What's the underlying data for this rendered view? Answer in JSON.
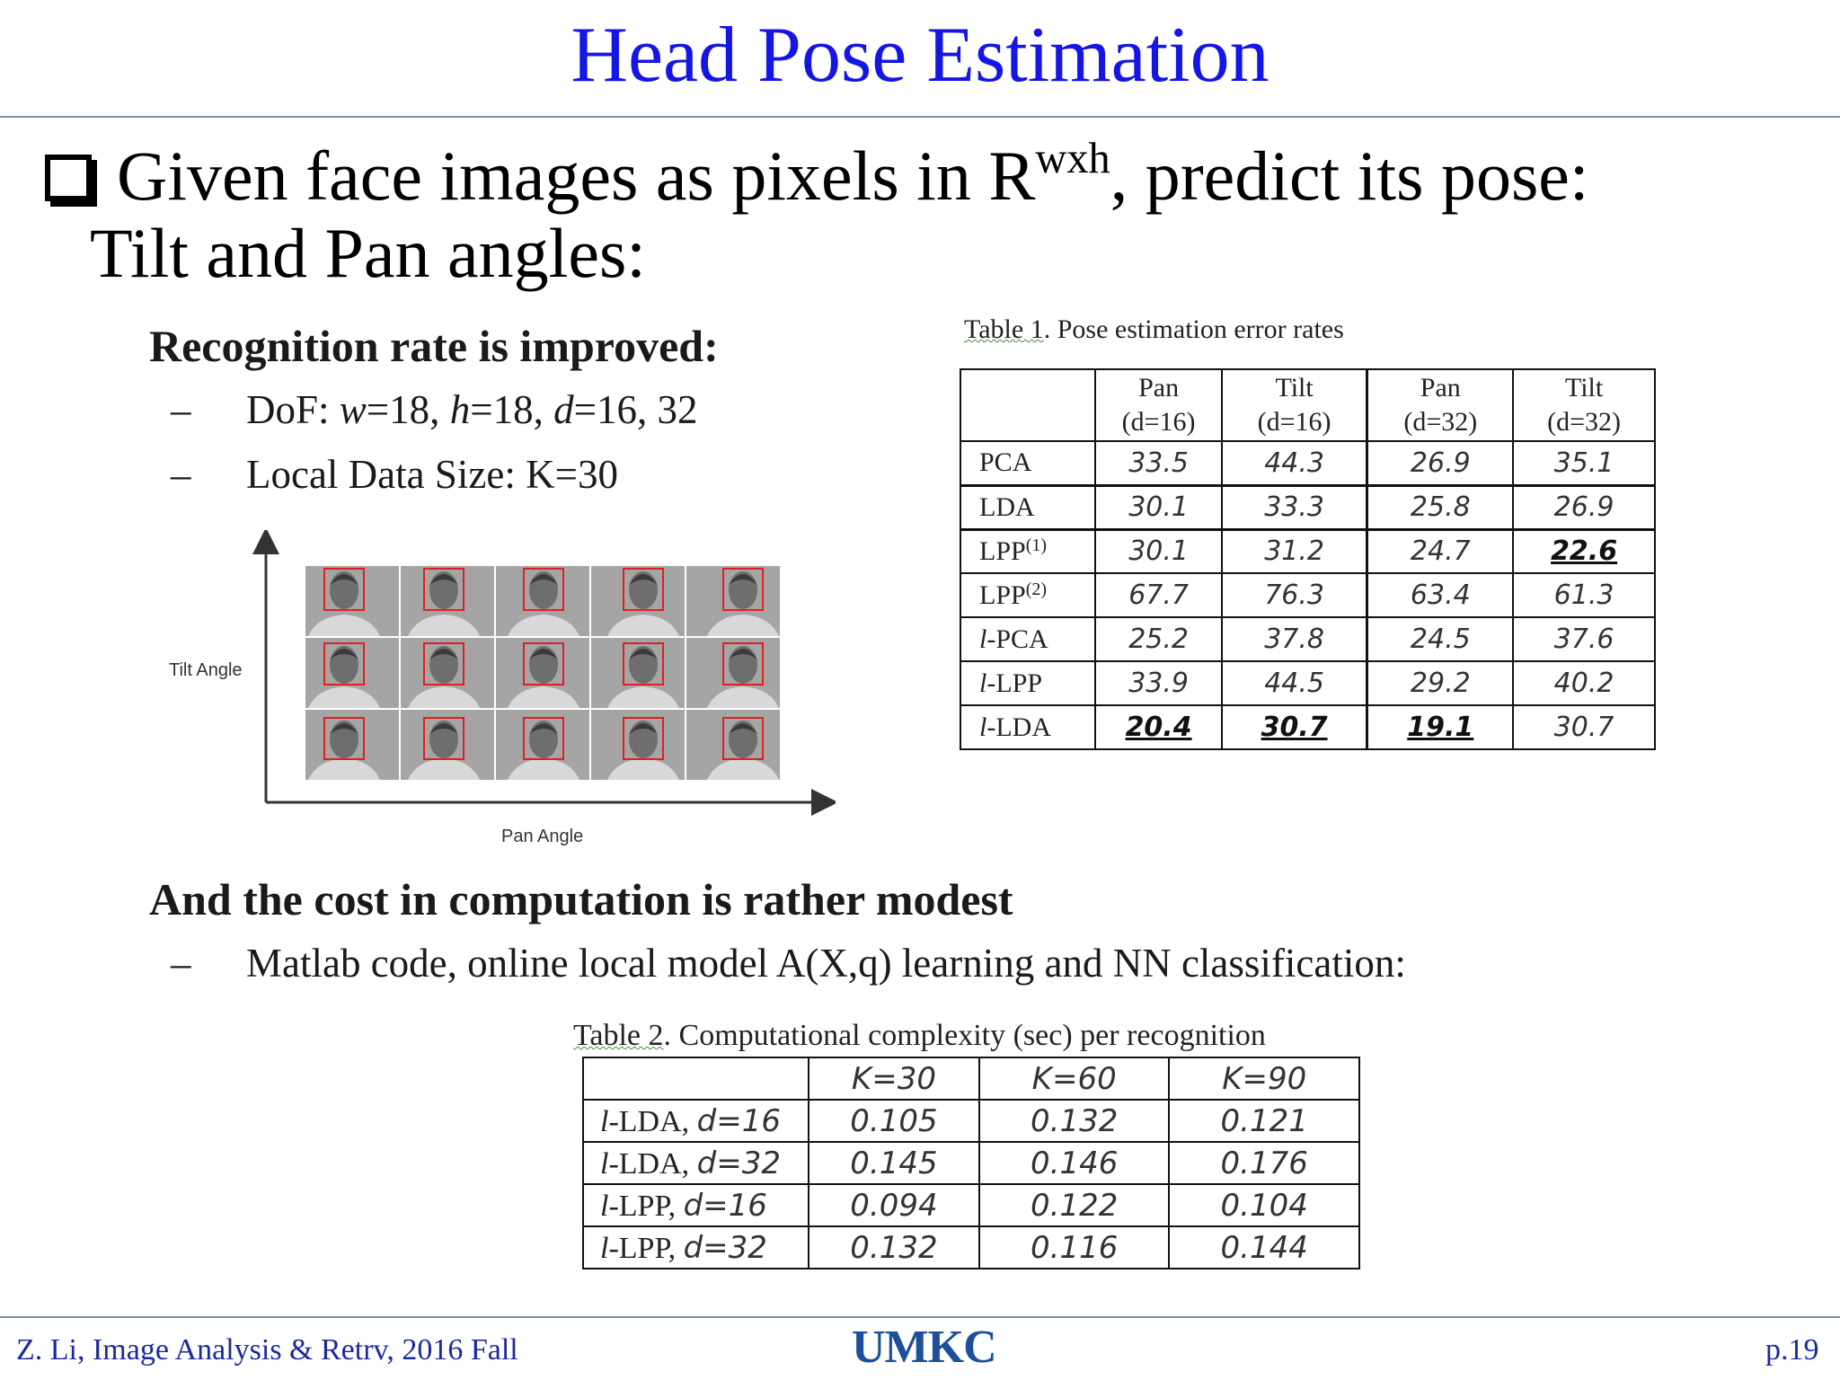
{
  "title": "Head Pose Estimation",
  "bullet": {
    "text_before": "Given face images as pixels in R",
    "superscript": "wxh",
    "text_after": ", predict its pose:",
    "line2": "Tilt and Pan angles:"
  },
  "section1": {
    "heading": "Recognition rate is improved:",
    "items": [
      {
        "prefix": "DoF: ",
        "w_var": "w",
        "w_val": "=18, ",
        "h_var": "h",
        "h_val": "=18, ",
        "d_var": "d",
        "d_val": "=16, 32"
      },
      {
        "text": "Local Data Size: K=30"
      }
    ]
  },
  "figure": {
    "y_axis_label": "Tilt Angle",
    "x_axis_label": "Pan Angle"
  },
  "table1": {
    "caption_label": "Table 1",
    "caption_text": ". Pose estimation error rates",
    "headers": [
      {
        "line1": "Pan",
        "line2": "(d=16)"
      },
      {
        "line1": "Tilt",
        "line2": "(d=16)"
      },
      {
        "line1": "Pan",
        "line2": "(d=32)"
      },
      {
        "line1": "Tilt",
        "line2": "(d=32)"
      }
    ],
    "rows": [
      {
        "method": "PCA",
        "sup": "",
        "values": [
          "33.5",
          "44.3",
          "26.9",
          "35.1"
        ]
      },
      {
        "method": "LDA",
        "sup": "",
        "values": [
          "30.1",
          "33.3",
          "25.8",
          "26.9"
        ]
      },
      {
        "method": "LPP",
        "sup": "(1)",
        "values": [
          "30.1",
          "31.2",
          "24.7",
          "22.6"
        ]
      },
      {
        "method": "LPP",
        "sup": "(2)",
        "values": [
          "67.7",
          "76.3",
          "63.4",
          "61.3"
        ]
      },
      {
        "method": "l-PCA",
        "sup": "",
        "values": [
          "25.2",
          "37.8",
          "24.5",
          "37.6"
        ]
      },
      {
        "method": "l-LPP",
        "sup": "",
        "values": [
          "33.9",
          "44.5",
          "29.2",
          "40.2"
        ]
      },
      {
        "method": "l-LDA",
        "sup": "",
        "values": [
          "20.4",
          "30.7",
          "19.1",
          "30.7"
        ]
      }
    ]
  },
  "section2": {
    "heading": "And the cost in computation is rather modest",
    "item": "Matlab code, online local model A(X,q) learning and NN classification:"
  },
  "table2": {
    "caption_label": "Table 2",
    "caption_text": ". Computational complexity (sec) per recognition",
    "headers": [
      "K=30",
      "K=60",
      "K=90"
    ],
    "rows": [
      {
        "method": "l-LDA, ",
        "param": "d=16",
        "values": [
          "0.105",
          "0.132",
          "0.121"
        ]
      },
      {
        "method": "l-LDA, ",
        "param": "d=32",
        "values": [
          "0.145",
          "0.146",
          "0.176"
        ]
      },
      {
        "method": "l-LPP, ",
        "param": "d=16",
        "values": [
          "0.094",
          "0.122",
          "0.104"
        ]
      },
      {
        "method": "l-LPP, ",
        "param": "d=32",
        "values": [
          "0.132",
          "0.116",
          "0.144"
        ]
      }
    ]
  },
  "footer": {
    "left": "Z. Li,  Image Analysis & Retrv, 2016 Fall",
    "logo": "UMKC",
    "page": "p.19"
  },
  "colors": {
    "title": "#1515e6",
    "footer_text": "#1b2b9b",
    "logo": "#1d4f9a",
    "face_box": "#e02020"
  }
}
